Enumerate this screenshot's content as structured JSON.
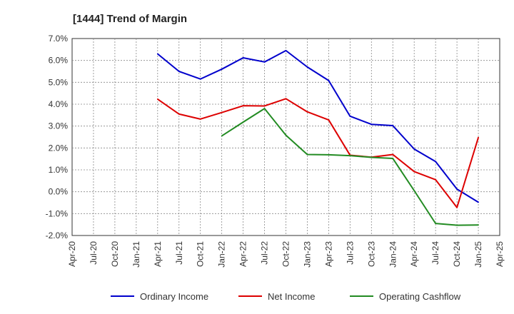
{
  "chart_data": {
    "type": "line",
    "title": "[1444]  Trend of Margin",
    "xlabel": "",
    "ylabel": "",
    "categories": [
      "Apr-20",
      "Jul-20",
      "Oct-20",
      "Jan-21",
      "Apr-21",
      "Jul-21",
      "Oct-21",
      "Jan-22",
      "Apr-22",
      "Jul-22",
      "Oct-22",
      "Jan-23",
      "Apr-23",
      "Jul-23",
      "Oct-23",
      "Jan-24",
      "Apr-24",
      "Jul-24",
      "Oct-24",
      "Jan-25",
      "Apr-25"
    ],
    "y_ticks": [
      "7.0%",
      "6.0%",
      "5.0%",
      "4.0%",
      "3.0%",
      "2.0%",
      "1.0%",
      "0.0%",
      "-1.0%",
      "-2.0%"
    ],
    "ylim": [
      -2.0,
      7.0
    ],
    "grid": true,
    "legend_position": "bottom",
    "series": [
      {
        "name": "Ordinary Income",
        "color": "#0000cc",
        "values": [
          null,
          null,
          null,
          null,
          6.3,
          5.5,
          5.15,
          5.6,
          6.12,
          5.93,
          6.45,
          5.7,
          5.08,
          3.45,
          3.08,
          3.02,
          1.95,
          1.38,
          0.12,
          -0.48,
          null
        ]
      },
      {
        "name": "Net Income",
        "color": "#dd0000",
        "values": [
          null,
          null,
          null,
          null,
          4.23,
          3.55,
          3.32,
          3.62,
          3.93,
          3.92,
          4.25,
          3.65,
          3.28,
          1.67,
          1.58,
          1.7,
          0.92,
          0.55,
          -0.72,
          2.48,
          null
        ]
      },
      {
        "name": "Operating Cashflow",
        "color": "#228b22",
        "values": [
          null,
          null,
          null,
          null,
          null,
          null,
          null,
          2.55,
          3.18,
          3.8,
          2.58,
          1.7,
          1.69,
          1.65,
          1.57,
          1.52,
          0.05,
          -1.45,
          -1.53,
          -1.52,
          null
        ]
      }
    ]
  }
}
